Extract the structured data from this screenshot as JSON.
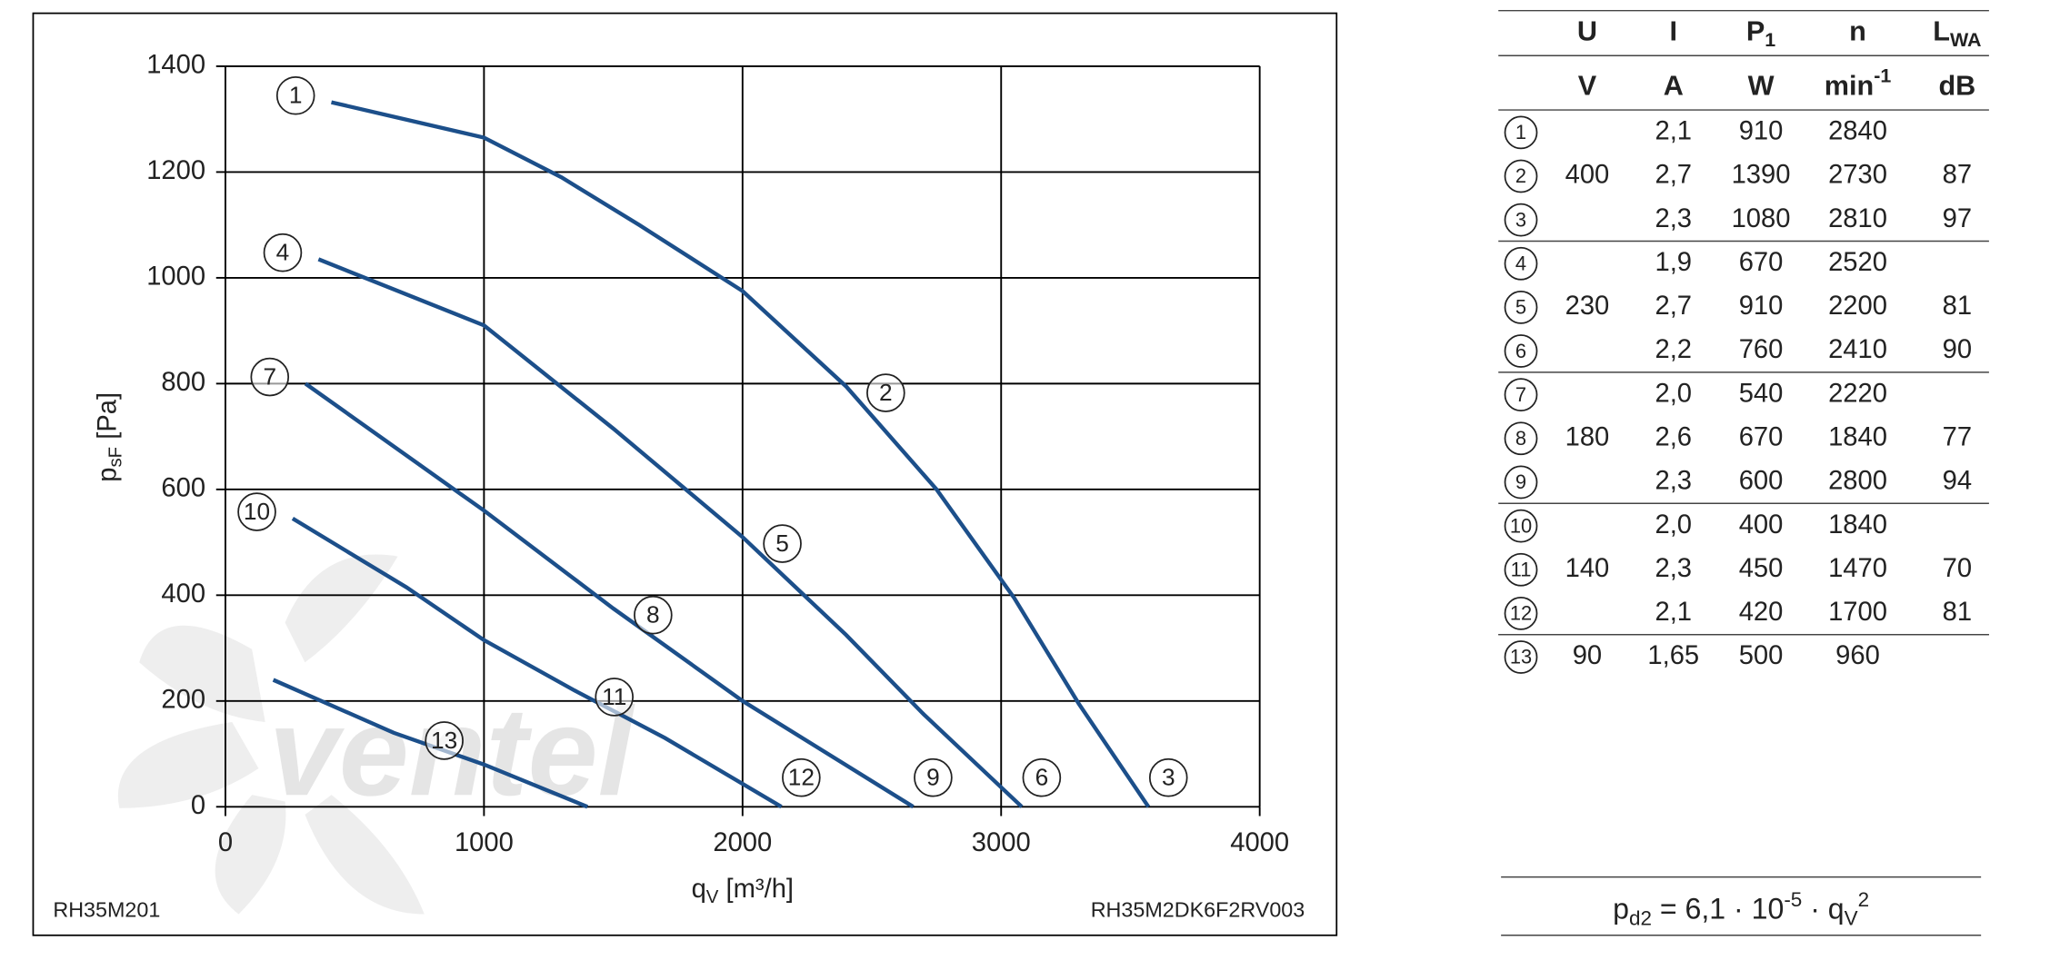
{
  "chart_data": {
    "type": "line",
    "xlabel": [
      {
        "text": "q"
      },
      {
        "sub": "V"
      },
      {
        "text": " [m³/h]"
      }
    ],
    "ylabel": [
      {
        "text": "p"
      },
      {
        "sub": "sF"
      },
      {
        "text": " [Pa]"
      }
    ],
    "xlim": [
      0,
      4000
    ],
    "xticks": [
      0,
      1000,
      2000,
      3000,
      4000
    ],
    "ylim": [
      0,
      1400
    ],
    "yticks": [
      0,
      200,
      400,
      600,
      800,
      1000,
      1200,
      1400
    ],
    "grid": true,
    "footer_left": "RH35M201",
    "footer_right": "RH35M2DK6F2RV003",
    "watermark": "ventel",
    "series": [
      {
        "labels": [
          "1",
          "2",
          "3"
        ],
        "color": "#1c4f8a",
        "x": [
          410,
          1000,
          1300,
          1600,
          2000,
          2400,
          2750,
          3050,
          3300,
          3570
        ],
        "values": [
          1332,
          1265,
          1190,
          1100,
          975,
          795,
          600,
          395,
          195,
          0
        ]
      },
      {
        "labels": [
          "4",
          "5",
          "6"
        ],
        "color": "#1c4f8a",
        "x": [
          360,
          1000,
          1500,
          2000,
          2400,
          2700,
          3080
        ],
        "values": [
          1035,
          910,
          715,
          510,
          325,
          175,
          0
        ]
      },
      {
        "labels": [
          "7",
          "8",
          "9"
        ],
        "color": "#1c4f8a",
        "x": [
          310,
          1000,
          1500,
          2000,
          2660
        ],
        "values": [
          800,
          560,
          375,
          200,
          0
        ]
      },
      {
        "labels": [
          "10",
          "11",
          "12"
        ],
        "color": "#1c4f8a",
        "x": [
          260,
          700,
          1000,
          1350,
          1700,
          2150
        ],
        "values": [
          545,
          415,
          315,
          220,
          130,
          0
        ]
      },
      {
        "labels": [
          "13"
        ],
        "color": "#1c4f8a",
        "x": [
          185,
          650,
          1000,
          1400
        ],
        "values": [
          240,
          140,
          80,
          0
        ]
      }
    ]
  },
  "table": {
    "header": [
      [
        {
          "text": "U"
        }
      ],
      [
        {
          "text": "I"
        }
      ],
      [
        {
          "text": "P"
        },
        {
          "sub": "1"
        }
      ],
      [
        {
          "text": "n"
        }
      ],
      [
        {
          "text": "L"
        },
        {
          "sub": "WA"
        }
      ]
    ],
    "units": [
      [
        {
          "text": "V"
        }
      ],
      [
        {
          "text": "A"
        }
      ],
      [
        {
          "text": "W"
        }
      ],
      [
        {
          "text": "min"
        },
        {
          "sup": "-1"
        }
      ],
      [
        {
          "text": "dB"
        }
      ]
    ],
    "rows": [
      [
        "1",
        null,
        "2,1",
        "910",
        "2840",
        null
      ],
      [
        "2",
        "400",
        "2,7",
        "1390",
        "2730",
        "87"
      ],
      [
        "3",
        null,
        "2,3",
        "1080",
        "2810",
        "97"
      ],
      [
        "4",
        null,
        "1,9",
        "670",
        "2520",
        null
      ],
      [
        "5",
        "230",
        "2,7",
        "910",
        "2200",
        "81"
      ],
      [
        "6",
        null,
        "2,2",
        "760",
        "2410",
        "90"
      ],
      [
        "7",
        null,
        "2,0",
        "540",
        "2220",
        null
      ],
      [
        "8",
        "180",
        "2,6",
        "670",
        "1840",
        "77"
      ],
      [
        "9",
        null,
        "2,3",
        "600",
        "2800",
        "94"
      ],
      [
        "10",
        null,
        "2,0",
        "400",
        "1840",
        null
      ],
      [
        "11",
        "140",
        "2,3",
        "450",
        "1470",
        "70"
      ],
      [
        "12",
        null,
        "2,1",
        "420",
        "1700",
        "81"
      ],
      [
        "13",
        "90",
        "1,65",
        "500",
        "960",
        null
      ]
    ],
    "formula": [
      {
        "text": "p"
      },
      {
        "sub": "d2"
      },
      {
        "text": " = 6,1 · 10"
      },
      {
        "sup": "-5"
      },
      {
        "text": " · q"
      },
      {
        "sub": "V"
      },
      {
        "sup": "2"
      }
    ]
  }
}
